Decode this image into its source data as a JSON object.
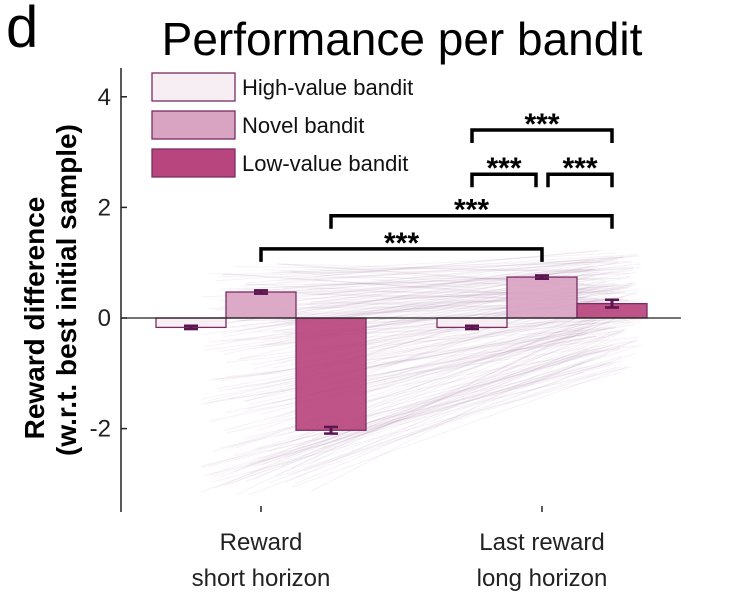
{
  "panel_label": "d",
  "chart_data": {
    "type": "bar",
    "title": "Performance per bandit",
    "ylabel_line1": "Reward difference",
    "ylabel_line2": "(w.r.t. best initial sample)",
    "xlabel": "",
    "ylim": [
      -3.5,
      4.5
    ],
    "yticks": [
      {
        "value": 4,
        "label": "4"
      },
      {
        "value": 2,
        "label": "2"
      },
      {
        "value": 0,
        "label": "0"
      },
      {
        "value": -2,
        "label": "-2"
      }
    ],
    "categories": [
      {
        "line1": "Reward",
        "line2": "short horizon"
      },
      {
        "line1": "Last reward",
        "line2": "long horizon"
      }
    ],
    "legend_position": "top-left",
    "series": [
      {
        "name": "High-value bandit",
        "color": "#f7eef3",
        "values": [
          -0.17,
          -0.17
        ],
        "errors": [
          0.03,
          0.03
        ]
      },
      {
        "name": "Novel bandit",
        "color": "#d9a3c2",
        "values": [
          0.47,
          0.74
        ],
        "errors": [
          0.03,
          0.03
        ]
      },
      {
        "name": "Low-value bandit",
        "color": "#b8457e",
        "values": [
          -2.03,
          0.26
        ],
        "errors": [
          0.06,
          0.07
        ]
      }
    ],
    "edge_color": "#7b2d63",
    "errorbar_color": "#5a1550",
    "significance": [
      {
        "from": [
          1,
          0
        ],
        "to": [
          1,
          2
        ],
        "level": 3.4,
        "label": "***"
      },
      {
        "from": [
          1,
          0
        ],
        "to": [
          1,
          1
        ],
        "level": 2.6,
        "label": "***"
      },
      {
        "from": [
          1,
          1
        ],
        "to": [
          1,
          2
        ],
        "level": 2.6,
        "label": "***"
      },
      {
        "from": [
          0,
          2
        ],
        "to": [
          1,
          2
        ],
        "level": 1.85,
        "label": "***"
      },
      {
        "from": [
          0,
          1
        ],
        "to": [
          1,
          1
        ],
        "level": 1.25,
        "label": "***"
      }
    ]
  }
}
